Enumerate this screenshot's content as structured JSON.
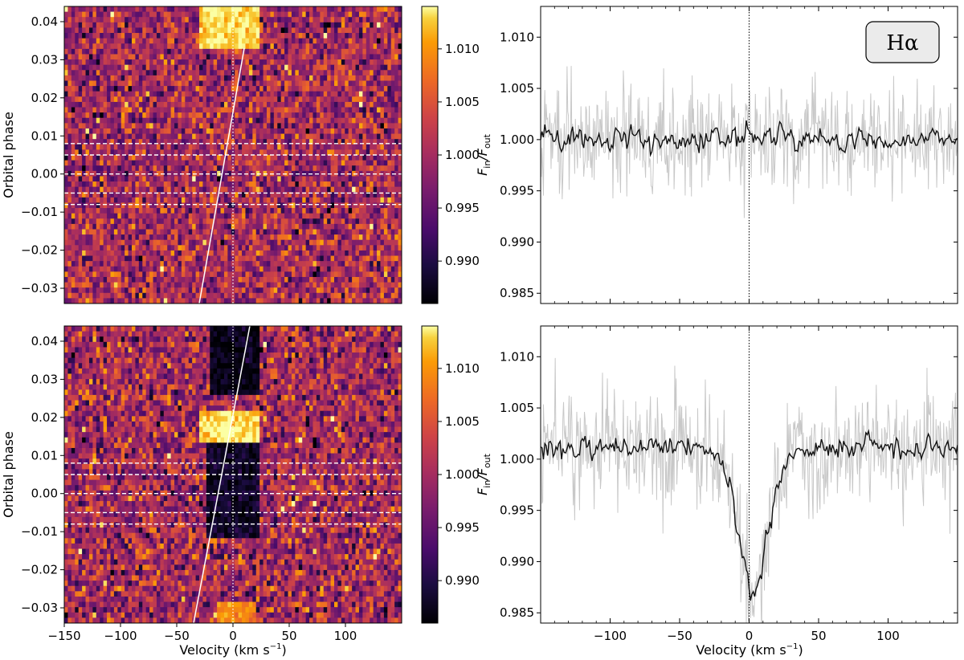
{
  "figure": {
    "line_label": "Hα",
    "ylabel_left": "Orbital phase",
    "ylabel_right_main": "F",
    "ylabel_right_sub1": "in",
    "ylabel_right_sep": "/F",
    "ylabel_right_sub2": "out",
    "xlabel": "Velocity (km s",
    "xlabel_exp": "−1",
    "xlabel_close": ")"
  },
  "colors": {
    "colormap": "inferno",
    "binned_line": "#111111",
    "raw_line": "#c8c8c8",
    "model_trail": "#ffffff",
    "contact_lines": "#ffffff"
  },
  "chart_data": [
    {
      "type": "heatmap",
      "panel": "top-left",
      "xlabel": "",
      "ylabel": "Orbital phase",
      "xlim": [
        -150,
        150
      ],
      "ylim": [
        -0.034,
        0.044
      ],
      "xticks": [],
      "yticks": [
        -0.03,
        -0.02,
        -0.01,
        0.0,
        0.01,
        0.02,
        0.03,
        0.04
      ],
      "ytick_labels": [
        "−0.03",
        "−0.02",
        "−0.01",
        "0.00",
        "0.01",
        "0.02",
        "0.03",
        "0.04"
      ],
      "contact_phases": [
        -0.008,
        -0.005,
        0.0,
        0.005,
        0.008
      ],
      "model_trail": {
        "x": [
          -30,
          10
        ],
        "y": [
          -0.034,
          0.033
        ]
      },
      "features": [
        {
          "kind": "emission",
          "v_range": [
            -30,
            25
          ],
          "phase_range": [
            0.033,
            0.044
          ],
          "value": 1.013
        }
      ],
      "colorbar": {
        "range": [
          0.986,
          1.014
        ],
        "ticks": [
          0.99,
          0.995,
          1.0,
          1.005,
          1.01
        ],
        "tick_labels": [
          "0.990",
          "0.995",
          "1.000",
          "1.005",
          "1.010"
        ]
      }
    },
    {
      "type": "line",
      "panel": "top-right",
      "xlabel": "",
      "ylabel": "Fin/Fout",
      "xlim": [
        -150,
        150
      ],
      "ylim": [
        0.984,
        1.013
      ],
      "xticks": [],
      "yticks": [
        0.985,
        0.99,
        0.995,
        1.0,
        1.005,
        1.01
      ],
      "ytick_labels": [
        "0.985",
        "0.990",
        "0.995",
        "1.000",
        "1.005",
        "1.010"
      ],
      "profile": {
        "continuum": 1.0,
        "absorption_depth": 0.0,
        "noise_binned": 0.0012,
        "noise_raw": 0.0024
      },
      "series": [
        {
          "values": []
        },
        {
          "values": []
        }
      ]
    },
    {
      "type": "heatmap",
      "panel": "bottom-left",
      "xlabel": "Velocity (km s−1)",
      "ylabel": "Orbital phase",
      "xlim": [
        -150,
        150
      ],
      "ylim": [
        -0.034,
        0.044
      ],
      "xticks": [
        -150,
        -100,
        -50,
        0,
        50,
        100
      ],
      "xtick_labels": [
        "−150",
        "−100",
        "−50",
        "0",
        "50",
        "100"
      ],
      "yticks": [
        -0.03,
        -0.02,
        -0.01,
        0.0,
        0.01,
        0.02,
        0.03,
        0.04
      ],
      "ytick_labels": [
        "−0.03",
        "−0.02",
        "−0.01",
        "0.00",
        "0.01",
        "0.02",
        "0.03",
        "0.04"
      ],
      "contact_phases": [
        -0.008,
        -0.005,
        0.0,
        0.005,
        0.008
      ],
      "model_trail": {
        "x": [
          -35,
          15
        ],
        "y": [
          -0.034,
          0.044
        ]
      },
      "features": [
        {
          "kind": "absorption",
          "v_range": [
            -20,
            25
          ],
          "phase_range": [
            0.026,
            0.044
          ],
          "value": 0.987
        },
        {
          "kind": "emission",
          "v_range": [
            -30,
            25
          ],
          "phase_range": [
            0.013,
            0.022
          ],
          "value": 1.013
        },
        {
          "kind": "absorption",
          "v_range": [
            -25,
            25
          ],
          "phase_range": [
            -0.012,
            0.013
          ],
          "value": 0.988
        },
        {
          "kind": "emission",
          "v_range": [
            -15,
            20
          ],
          "phase_range": [
            -0.034,
            -0.028
          ],
          "value": 1.009
        }
      ],
      "colorbar": {
        "range": [
          0.986,
          1.014
        ],
        "ticks": [
          0.99,
          0.995,
          1.0,
          1.005,
          1.01
        ],
        "tick_labels": [
          "0.990",
          "0.995",
          "1.000",
          "1.005",
          "1.010"
        ]
      }
    },
    {
      "type": "line",
      "panel": "bottom-right",
      "xlabel": "Velocity (km s−1)",
      "ylabel": "Fin/Fout",
      "xlim": [
        -150,
        150
      ],
      "ylim": [
        0.984,
        1.013
      ],
      "xticks": [
        -100,
        -50,
        0,
        50,
        100
      ],
      "xtick_labels": [
        "−100",
        "−50",
        "0",
        "50",
        "100"
      ],
      "yticks": [
        0.985,
        0.99,
        0.995,
        1.0,
        1.005,
        1.01
      ],
      "ytick_labels": [
        "0.985",
        "0.990",
        "0.995",
        "1.000",
        "1.005",
        "1.010"
      ],
      "profile": {
        "continuum": 1.001,
        "absorption_depth": 0.0135,
        "absorption_center": 3,
        "absorption_sigma": 11,
        "noise_binned": 0.0012,
        "noise_raw": 0.0026
      },
      "series": [
        {
          "values": []
        },
        {
          "values": []
        }
      ]
    }
  ]
}
